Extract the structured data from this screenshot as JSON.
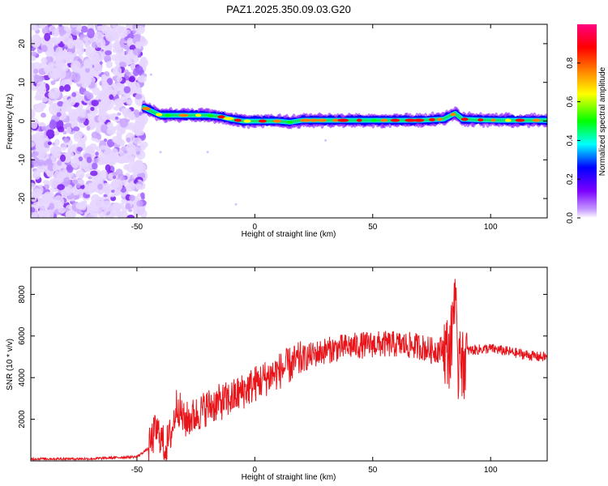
{
  "figure": {
    "title": "PAZ1.2025.350.09.03.G20"
  },
  "chart_data": [
    {
      "type": "heatmap",
      "xlabel": "Height of straight line (km)",
      "ylabel": "Frequency (Hz)",
      "xlim": [
        -95,
        124
      ],
      "ylim": [
        -25,
        25
      ],
      "xticks": [
        -50,
        0,
        50,
        100
      ],
      "yticks": [
        -20,
        -10,
        0,
        10,
        20
      ],
      "colorbar": {
        "label": "Normalized spectral amplitude",
        "range": [
          0,
          1
        ],
        "ticks": [
          0.0,
          0.2,
          0.4,
          0.6,
          0.8
        ],
        "tick_labels": [
          "0.0",
          "0.2",
          "0.4",
          "0.6",
          "0.8"
        ],
        "colors": [
          "#ffffff",
          "#7b00ff",
          "#0000ff",
          "#00ffff",
          "#00ff00",
          "#ffff00",
          "#ff8000",
          "#ff0000",
          "#ff0080"
        ]
      },
      "noise_region_x": [
        -95,
        -47
      ],
      "signal_track": {
        "x": [
          -47,
          -40,
          -30,
          -20,
          -15,
          -10,
          -5,
          0,
          5,
          10,
          15,
          20,
          30,
          40,
          50,
          60,
          70,
          80,
          85,
          88,
          95,
          105,
          115,
          124
        ],
        "y": [
          3.5,
          1.5,
          1.5,
          1.5,
          1.2,
          0.5,
          0,
          0,
          0,
          0,
          -0.3,
          0.2,
          0.2,
          0.2,
          0.2,
          0.2,
          0.2,
          0.5,
          2.0,
          0.5,
          0.3,
          0.2,
          0.2,
          0.2
        ]
      }
    },
    {
      "type": "line",
      "xlabel": "Height of straight line (km)",
      "ylabel": "SNR (10 * v/v)",
      "xlim": [
        -95,
        124
      ],
      "ylim": [
        0,
        9300
      ],
      "xticks": [
        -50,
        0,
        50,
        100
      ],
      "yticks": [
        2000,
        4000,
        6000,
        8000
      ],
      "color": "#e8141a",
      "series": [
        {
          "x": [
            -95,
            -70,
            -50,
            -45,
            -42,
            -40,
            -38,
            -35,
            -33,
            -30,
            -25,
            -20,
            -10,
            0,
            10,
            20,
            30,
            40,
            50,
            60,
            70,
            75,
            80,
            83,
            85,
            86,
            87,
            88,
            90,
            100,
            110,
            120,
            124
          ],
          "y": [
            100,
            100,
            200,
            600,
            1500,
            1200,
            600,
            1500,
            2800,
            1900,
            2200,
            2600,
            3000,
            3700,
            4300,
            4900,
            5300,
            5500,
            5600,
            5600,
            5500,
            5300,
            5400,
            5200,
            8800,
            3500,
            6500,
            4400,
            5300,
            5400,
            5200,
            5000,
            5000
          ]
        }
      ]
    }
  ]
}
